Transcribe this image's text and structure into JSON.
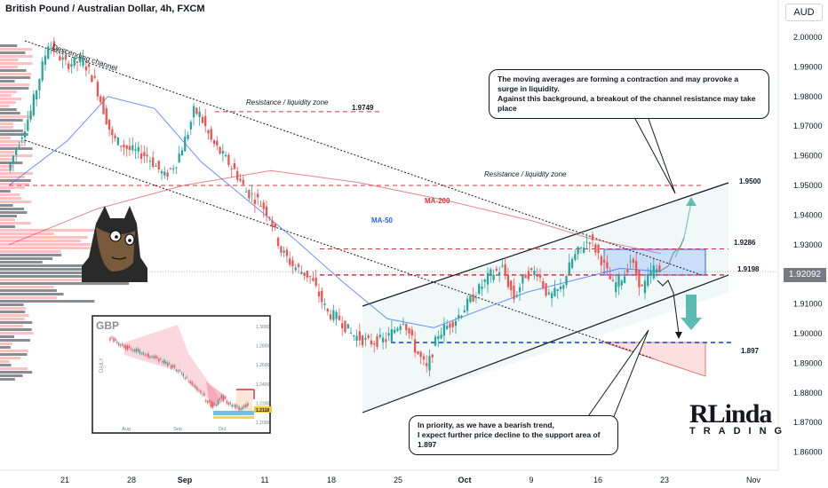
{
  "header": {
    "title": "British Pound / Australian Dollar, 4h, FXCM",
    "currency": "AUD"
  },
  "current_price": "1.92092",
  "annotations": {
    "channel": "Descending channel",
    "resistance_top": "Resistance / liquidity zone",
    "resistance_top_value": "1.9749",
    "resistance_mid": "Resistance / liquidity zone",
    "ma200": "MA-200",
    "ma50": "MA-50",
    "level_1950": "1.9500",
    "level_1929": "1.9286",
    "level_1920": "1.9198",
    "level_1897": "1.897"
  },
  "callouts": {
    "top": [
      "The moving averages are forming a contraction and may provoke a surge in liquidity.",
      "Against this background, a breakout of the channel resistance may take place"
    ],
    "bottom": [
      "In priority, as we have a bearish trend,",
      "I expect further price decline to the support area of 1.897"
    ]
  },
  "logo": {
    "top": "RLinda",
    "bottom": "TRADING"
  },
  "inset": {
    "label": "GBP",
    "side_label": "DAILY",
    "y_ticks": [
      "1.3000",
      "1.2800",
      "1.2600",
      "1.2400",
      "1.2200",
      "1.2000"
    ],
    "x_ticks": [
      "Aug",
      "Sep",
      "Oct"
    ],
    "price_tag": "1.2118"
  },
  "chart_data": {
    "type": "candlestick",
    "title": "British Pound / Australian Dollar, 4h, FXCM",
    "y_axis": {
      "ticks": [
        "2.00000",
        "1.99000",
        "1.98000",
        "1.97000",
        "1.96000",
        "1.95000",
        "1.94000",
        "1.93000",
        "1.92000",
        "1.91000",
        "1.90000",
        "1.89000",
        "1.88000",
        "1.87000",
        "1.86000"
      ],
      "range": [
        1.855,
        2.005
      ]
    },
    "x_axis": {
      "ticks": [
        "21",
        "28",
        "Sep",
        "11",
        "18",
        "25",
        "Oct",
        "9",
        "16",
        "23",
        "Nov"
      ]
    },
    "price_path": [
      [
        0,
        1.955
      ],
      [
        8,
        1.975
      ],
      [
        14,
        1.998
      ],
      [
        20,
        1.991
      ],
      [
        26,
        1.992
      ],
      [
        30,
        1.985
      ],
      [
        36,
        1.966
      ],
      [
        42,
        1.962
      ],
      [
        48,
        1.96
      ],
      [
        54,
        1.953
      ],
      [
        58,
        1.958
      ],
      [
        62,
        1.968
      ],
      [
        64,
        1.975
      ],
      [
        66,
        1.974
      ],
      [
        70,
        1.965
      ],
      [
        74,
        1.96
      ],
      [
        78,
        1.955
      ],
      [
        82,
        1.948
      ],
      [
        86,
        1.945
      ],
      [
        90,
        1.94
      ],
      [
        94,
        1.928
      ],
      [
        98,
        1.923
      ],
      [
        104,
        1.919
      ],
      [
        110,
        1.907
      ],
      [
        114,
        1.905
      ],
      [
        118,
        1.9
      ],
      [
        124,
        1.897
      ],
      [
        130,
        1.898
      ],
      [
        136,
        1.905
      ],
      [
        140,
        1.895
      ],
      [
        144,
        1.888
      ],
      [
        148,
        1.9
      ],
      [
        154,
        1.905
      ],
      [
        158,
        1.91
      ],
      [
        162,
        1.915
      ],
      [
        166,
        1.92
      ],
      [
        170,
        1.922
      ],
      [
        174,
        1.912
      ],
      [
        178,
        1.92
      ],
      [
        182,
        1.921
      ],
      [
        186,
        1.912
      ],
      [
        190,
        1.915
      ],
      [
        194,
        1.925
      ],
      [
        198,
        1.93
      ],
      [
        200,
        1.932
      ],
      [
        204,
        1.925
      ],
      [
        208,
        1.916
      ],
      [
        212,
        1.92
      ],
      [
        214,
        1.925
      ],
      [
        218,
        1.915
      ],
      [
        222,
        1.922
      ],
      [
        224,
        1.9209
      ]
    ],
    "ma50": [
      [
        0,
        1.95
      ],
      [
        20,
        1.965
      ],
      [
        34,
        1.98
      ],
      [
        50,
        1.976
      ],
      [
        66,
        1.958
      ],
      [
        82,
        1.945
      ],
      [
        98,
        1.932
      ],
      [
        114,
        1.918
      ],
      [
        130,
        1.905
      ],
      [
        146,
        1.902
      ],
      [
        162,
        1.908
      ],
      [
        178,
        1.914
      ],
      [
        194,
        1.918
      ],
      [
        210,
        1.922
      ],
      [
        224,
        1.921
      ]
    ],
    "ma200": [
      [
        0,
        1.93
      ],
      [
        30,
        1.942
      ],
      [
        60,
        1.95
      ],
      [
        90,
        1.955
      ],
      [
        120,
        1.951
      ],
      [
        150,
        1.945
      ],
      [
        180,
        1.938
      ],
      [
        200,
        1.932
      ],
      [
        224,
        1.927
      ]
    ],
    "levels": [
      {
        "name": "1.9749",
        "value": 1.9749,
        "style": "dashed",
        "color": "#e0303a"
      },
      {
        "name": "1.9500",
        "value": 1.95,
        "style": "dashed",
        "color": "#e0303a"
      },
      {
        "name": "1.9286",
        "value": 1.9286,
        "style": "dashed",
        "color": "#e0303a"
      },
      {
        "name": "1.9198",
        "value": 1.9198,
        "style": "dashed",
        "color": "#e0303a"
      },
      {
        "name": "1.897",
        "value": 1.897,
        "style": "dashed",
        "color": "#1f4fd6"
      }
    ],
    "colors": {
      "up": "#26a69a",
      "down": "#ef5350",
      "ma50": "#2962ff",
      "ma200": "#e0303a"
    }
  }
}
